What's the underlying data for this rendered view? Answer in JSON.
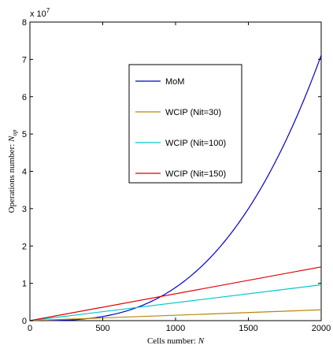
{
  "chart_data": {
    "type": "line",
    "xlabel": "Cells number: N",
    "ylabel": "Operations number: N_op",
    "xlim": [
      0,
      2000
    ],
    "ylim": [
      0,
      8
    ],
    "xticks": [
      "0",
      "500",
      "1000",
      "1500",
      "2000"
    ],
    "yticks": [
      "0",
      "1",
      "2",
      "3",
      "4",
      "5",
      "6",
      "7",
      "8"
    ],
    "y_multiplier": "x 10^7",
    "legend_position": "inside-center",
    "grid": false,
    "series": [
      {
        "name": "MoM",
        "color": "#0000cc",
        "x": [
          0,
          250,
          500,
          750,
          1000,
          1250,
          1500,
          1750,
          2000
        ],
        "values": [
          0,
          0.0014,
          0.111,
          0.375,
          0.889,
          1.736,
          3.0,
          4.764,
          7.11
        ]
      },
      {
        "name": "WCIP (Nit=30)",
        "color": "#b8860b",
        "x": [
          0,
          2000
        ],
        "values": [
          0,
          0.29
        ]
      },
      {
        "name": "WCIP (Nit=100)",
        "color": "#00c8c8",
        "x": [
          0,
          2000
        ],
        "values": [
          0,
          0.96
        ]
      },
      {
        "name": "WCIP (Nit=150)",
        "color": "#e00000",
        "x": [
          0,
          2000
        ],
        "values": [
          0,
          1.44
        ]
      }
    ]
  }
}
